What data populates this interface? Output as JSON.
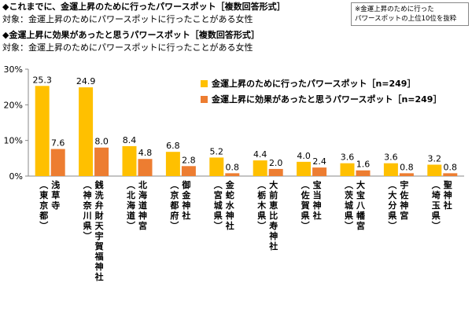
{
  "header": {
    "line1": "◆これまでに、金運上昇のために行ったパワースポット［複数回答形式］",
    "line2": "対象：金運上昇のためにパワースポットに行ったことがある女性",
    "line3": "◆金運上昇に効果があったと思うパワースポット［複数回答形式］",
    "line4": "対象：金運上昇のためにパワースポットに行ったことがある女性",
    "note_line1": "※金運上昇のために行った",
    "note_line2": "パワースポットの上位10位を抜粋"
  },
  "colors": {
    "visited": "#FFC000",
    "effective": "#ED7D31"
  },
  "chart_data": {
    "type": "bar",
    "ylim": [
      0,
      30
    ],
    "yticks": [
      "0%",
      "10%",
      "20%",
      "30%"
    ],
    "categories": [
      "浅草寺（東京都）",
      "銭洗弁財天宇賀福神社（神奈川県）",
      "北海道神宮（北海道）",
      "御金神社（京都府）",
      "金蛇水神社（宮城県）",
      "大前恵比寿神社（栃木県）",
      "宝当神社（佐賀県）",
      "大宝八幡宮（茨城県）",
      "宇佐神宮（大分県）",
      "聖神社（埼玉県）"
    ],
    "series": [
      {
        "name": "金運上昇のために行ったパワースポット［n=249］",
        "values": [
          25.3,
          24.9,
          8.4,
          6.8,
          5.2,
          4.4,
          4.0,
          3.6,
          3.6,
          3.2
        ]
      },
      {
        "name": "金運上昇に効果があったと思うパワースポット［n=249］",
        "values": [
          7.6,
          8.0,
          4.8,
          2.8,
          0.8,
          2.0,
          2.4,
          1.6,
          0.8,
          0.8
        ]
      }
    ],
    "value_labels": [
      [
        "25.3",
        "24.9",
        "8.4",
        "6.8",
        "5.2",
        "4.4",
        "4.0",
        "3.6",
        "3.6",
        "3.2"
      ],
      [
        "7.6",
        "8.0",
        "4.8",
        "2.8",
        "0.8",
        "2.0",
        "2.4",
        "1.6",
        "0.8",
        "0.8"
      ]
    ],
    "legend_position": "top-right",
    "grid": false
  }
}
